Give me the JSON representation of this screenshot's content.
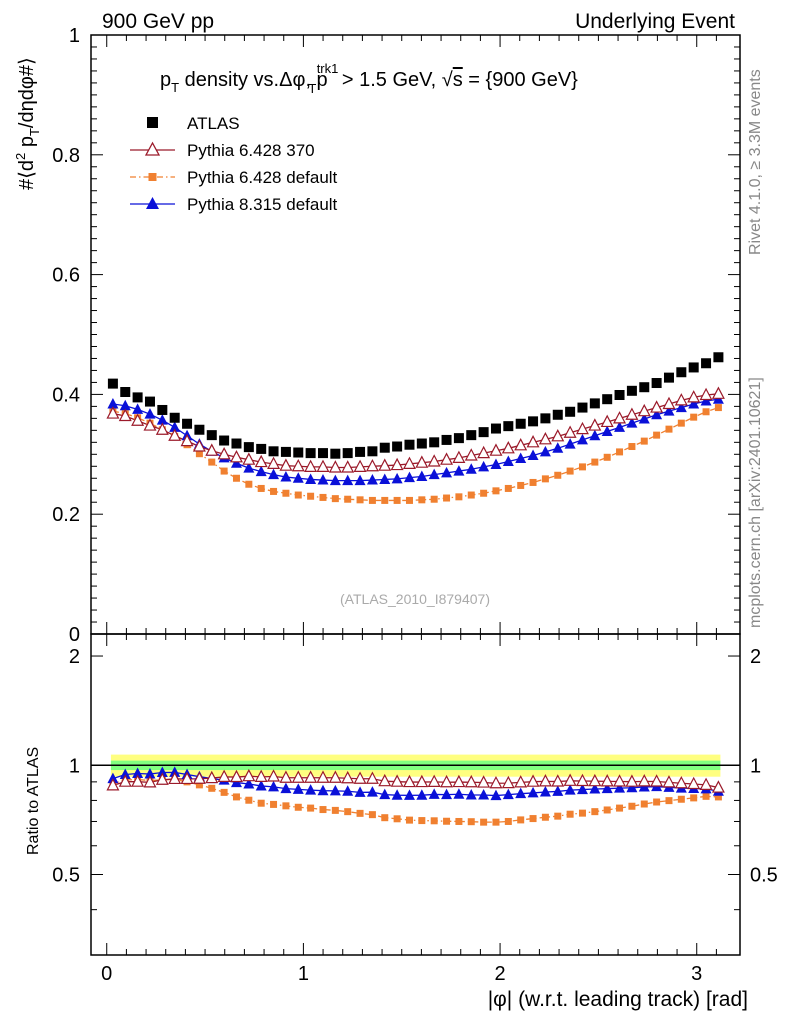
{
  "header": {
    "left": "900 GeV pp",
    "right": "Underlying Event"
  },
  "side_labels": {
    "rivet": "Rivet 4.1.0, ≥ 3.3M events",
    "mcplots": "mcplots.cern.ch [arXiv:2401.10621]"
  },
  "chart_data": {
    "type": "scatter",
    "title": "p_T density vs.Δφ, p_T^trk1 > 1.5 GeV, √s = {900 GeV}",
    "title_parts": {
      "p": "p",
      "T": "T",
      "mid": " density vs.Δφ, p",
      "trk": "trk1",
      "rest": " > 1.5 GeV, ",
      "sqrt": "√",
      "s": "s",
      "end": " = {900 GeV}"
    },
    "ylabel": "#⟨d² p_T/dηdφ#⟩",
    "ylabel_parts": {
      "a": "#⟨d",
      "two": "2",
      "p": " p",
      "T": "T",
      "b": "/dηdφ#⟩"
    },
    "xlabel": "|φ| (w.r.t. leading track) [rad]",
    "ratio_ylabel": "Ratio to ATLAS",
    "watermark": "(ATLAS_2010_I879407)",
    "xlim": [
      -0.08,
      3.22
    ],
    "ylim": [
      0,
      1.0
    ],
    "ratio_ylim": [
      0.3,
      2.3
    ],
    "x_ticks": [
      "0",
      "1",
      "2",
      "3"
    ],
    "y_ticks": [
      "0",
      "0.2",
      "0.4",
      "0.6",
      "0.8",
      "1"
    ],
    "ratio_ticks": [
      "0.5",
      "1",
      "2"
    ],
    "ratio_band": {
      "green": [
        0.97,
        1.03
      ],
      "yellow": [
        0.93,
        1.07
      ]
    },
    "x": [
      0.0314,
      0.0942,
      0.157,
      0.2199,
      0.2827,
      0.3456,
      0.4084,
      0.4712,
      0.5341,
      0.5969,
      0.6597,
      0.7226,
      0.7854,
      0.8482,
      0.9111,
      0.9739,
      1.0367,
      1.0996,
      1.1624,
      1.2252,
      1.2881,
      1.3509,
      1.4137,
      1.4765,
      1.5394,
      1.6022,
      1.665,
      1.7279,
      1.7907,
      1.8535,
      1.9164,
      1.9792,
      2.042,
      2.1049,
      2.1677,
      2.2305,
      2.2934,
      2.3562,
      2.419,
      2.4819,
      2.5447,
      2.6075,
      2.6704,
      2.7332,
      2.796,
      2.8589,
      2.9217,
      2.9845,
      3.0474,
      3.1102
    ],
    "series": [
      {
        "name": "ATLAS",
        "color": "#000000",
        "marker": "square",
        "values": [
          0.418,
          0.404,
          0.395,
          0.388,
          0.374,
          0.361,
          0.351,
          0.341,
          0.332,
          0.323,
          0.318,
          0.312,
          0.309,
          0.305,
          0.304,
          0.303,
          0.302,
          0.302,
          0.301,
          0.302,
          0.304,
          0.305,
          0.311,
          0.313,
          0.316,
          0.318,
          0.32,
          0.324,
          0.327,
          0.332,
          0.337,
          0.343,
          0.347,
          0.351,
          0.355,
          0.36,
          0.366,
          0.371,
          0.378,
          0.385,
          0.392,
          0.399,
          0.406,
          0.412,
          0.419,
          0.428,
          0.437,
          0.445,
          0.452,
          0.462
        ]
      },
      {
        "name": "Pythia 6.428 370",
        "color": "#9b1a2a",
        "marker": "triangle-open",
        "line": "solid",
        "values": [
          0.368,
          0.364,
          0.356,
          0.348,
          0.341,
          0.331,
          0.322,
          0.313,
          0.306,
          0.3,
          0.295,
          0.291,
          0.287,
          0.284,
          0.281,
          0.28,
          0.279,
          0.279,
          0.278,
          0.278,
          0.279,
          0.28,
          0.281,
          0.282,
          0.284,
          0.286,
          0.288,
          0.291,
          0.294,
          0.298,
          0.302,
          0.306,
          0.31,
          0.315,
          0.32,
          0.325,
          0.33,
          0.336,
          0.342,
          0.348,
          0.354,
          0.36,
          0.366,
          0.372,
          0.378,
          0.384,
          0.39,
          0.395,
          0.399,
          0.401
        ]
      },
      {
        "name": "Pythia 6.428 default",
        "color": "#f08030",
        "marker": "square-small",
        "line": "dashdot",
        "values": [
          0.372,
          0.368,
          0.361,
          0.352,
          0.341,
          0.33,
          0.316,
          0.301,
          0.287,
          0.272,
          0.26,
          0.25,
          0.243,
          0.238,
          0.235,
          0.232,
          0.23,
          0.228,
          0.226,
          0.225,
          0.224,
          0.223,
          0.223,
          0.223,
          0.223,
          0.224,
          0.225,
          0.227,
          0.229,
          0.232,
          0.235,
          0.239,
          0.243,
          0.248,
          0.253,
          0.259,
          0.265,
          0.272,
          0.279,
          0.287,
          0.295,
          0.304,
          0.313,
          0.322,
          0.332,
          0.342,
          0.352,
          0.362,
          0.371,
          0.378
        ]
      },
      {
        "name": "Pythia 8.315 default",
        "color": "#0a10d8",
        "marker": "triangle",
        "line": "solid",
        "values": [
          0.384,
          0.381,
          0.375,
          0.367,
          0.357,
          0.345,
          0.331,
          0.317,
          0.305,
          0.294,
          0.285,
          0.277,
          0.271,
          0.266,
          0.262,
          0.26,
          0.258,
          0.257,
          0.256,
          0.256,
          0.256,
          0.257,
          0.258,
          0.259,
          0.261,
          0.263,
          0.266,
          0.269,
          0.272,
          0.275,
          0.279,
          0.283,
          0.288,
          0.293,
          0.298,
          0.304,
          0.31,
          0.317,
          0.324,
          0.331,
          0.338,
          0.345,
          0.352,
          0.359,
          0.366,
          0.372,
          0.378,
          0.384,
          0.389,
          0.392
        ]
      }
    ],
    "ratios": [
      [
        0.88,
        0.901,
        0.901,
        0.897,
        0.912,
        0.917,
        0.917,
        0.918,
        0.922,
        0.929,
        0.928,
        0.933,
        0.929,
        0.931,
        0.924,
        0.924,
        0.924,
        0.924,
        0.924,
        0.921,
        0.918,
        0.918,
        0.904,
        0.901,
        0.899,
        0.899,
        0.9,
        0.898,
        0.899,
        0.898,
        0.896,
        0.892,
        0.893,
        0.897,
        0.901,
        0.903,
        0.902,
        0.906,
        0.905,
        0.904,
        0.903,
        0.902,
        0.901,
        0.903,
        0.902,
        0.897,
        0.892,
        0.888,
        0.883,
        0.868
      ],
      [
        0.89,
        0.911,
        0.914,
        0.907,
        0.912,
        0.914,
        0.9,
        0.883,
        0.864,
        0.842,
        0.818,
        0.801,
        0.786,
        0.78,
        0.773,
        0.766,
        0.762,
        0.755,
        0.751,
        0.745,
        0.737,
        0.731,
        0.717,
        0.712,
        0.706,
        0.704,
        0.703,
        0.701,
        0.7,
        0.699,
        0.697,
        0.697,
        0.7,
        0.707,
        0.713,
        0.719,
        0.724,
        0.733,
        0.738,
        0.745,
        0.753,
        0.762,
        0.771,
        0.782,
        0.792,
        0.799,
        0.806,
        0.813,
        0.821,
        0.818
      ],
      [
        0.919,
        0.943,
        0.949,
        0.946,
        0.955,
        0.956,
        0.943,
        0.93,
        0.919,
        0.91,
        0.896,
        0.888,
        0.877,
        0.872,
        0.862,
        0.858,
        0.854,
        0.851,
        0.85,
        0.848,
        0.842,
        0.843,
        0.83,
        0.827,
        0.826,
        0.827,
        0.831,
        0.83,
        0.832,
        0.828,
        0.828,
        0.825,
        0.83,
        0.835,
        0.839,
        0.844,
        0.847,
        0.854,
        0.857,
        0.86,
        0.862,
        0.865,
        0.867,
        0.871,
        0.873,
        0.869,
        0.865,
        0.863,
        0.861,
        0.848
      ]
    ]
  }
}
